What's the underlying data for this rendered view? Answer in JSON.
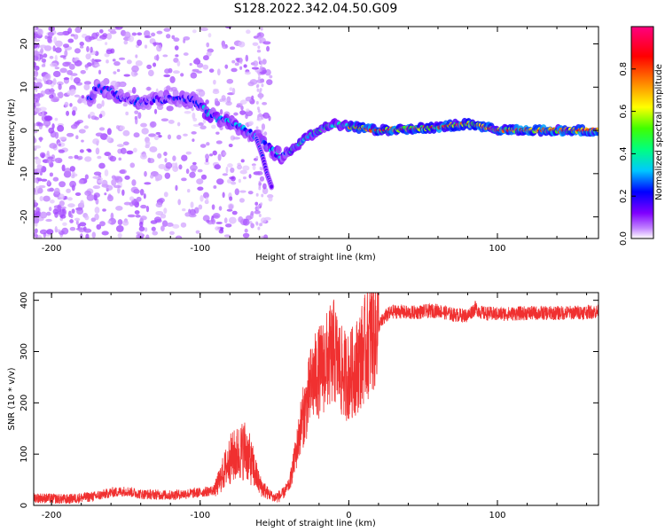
{
  "figure": {
    "title": "S128.2022.342.04.50.G09"
  },
  "chart_data": [
    {
      "type": "heatmap",
      "xlabel": "Height of straight line (km)",
      "ylabel": "Frequency (Hz)",
      "xlim": [
        -212,
        168
      ],
      "ylim": [
        -25,
        24
      ],
      "x_ticks": [
        -200,
        -100,
        0,
        100
      ],
      "y_ticks": [
        -20,
        -10,
        0,
        10,
        20
      ],
      "grid": false,
      "description_track": [
        {
          "x": -175,
          "y": 7
        },
        {
          "x": -170,
          "y": 10
        },
        {
          "x": -160,
          "y": 9
        },
        {
          "x": -150,
          "y": 7
        },
        {
          "x": -140,
          "y": 6.5
        },
        {
          "x": -130,
          "y": 7
        },
        {
          "x": -120,
          "y": 7.5
        },
        {
          "x": -105,
          "y": 7
        },
        {
          "x": -98,
          "y": 5
        },
        {
          "x": -90,
          "y": 3
        },
        {
          "x": -80,
          "y": 2
        },
        {
          "x": -70,
          "y": 0
        },
        {
          "x": -60,
          "y": -2
        },
        {
          "x": -50,
          "y": -5
        },
        {
          "x": -45,
          "y": -6
        },
        {
          "x": -40,
          "y": -5
        },
        {
          "x": -30,
          "y": -2
        },
        {
          "x": -20,
          "y": 0
        },
        {
          "x": -10,
          "y": 1.5
        },
        {
          "x": 0,
          "y": 1
        },
        {
          "x": 20,
          "y": 0
        },
        {
          "x": 50,
          "y": 0.5
        },
        {
          "x": 80,
          "y": 1.5
        },
        {
          "x": 90,
          "y": 1
        },
        {
          "x": 100,
          "y": 0
        },
        {
          "x": 130,
          "y": 0
        },
        {
          "x": 168,
          "y": 0
        }
      ],
      "branch_track": [
        {
          "x": -62,
          "y": -2
        },
        {
          "x": -58,
          "y": -6
        },
        {
          "x": -55,
          "y": -10
        },
        {
          "x": -52,
          "y": -13
        }
      ],
      "colorbar": {
        "label": "Normalized spectral amplitude",
        "range": [
          0,
          1
        ],
        "ticks": [
          0.0,
          0.2,
          0.4,
          0.6,
          0.8
        ],
        "colors": [
          "#ffffff",
          "#c080ff",
          "#7f00ff",
          "#0000ff",
          "#00c8ff",
          "#00ff80",
          "#40ff00",
          "#ffff00",
          "#ff8000",
          "#ff0000",
          "#ff0080"
        ]
      }
    },
    {
      "type": "line",
      "xlabel": "Height of straight line (km)",
      "ylabel": "SNR (10 * v/v)",
      "xlim": [
        -212,
        168
      ],
      "ylim": [
        0,
        415
      ],
      "x_ticks": [
        -200,
        -100,
        0,
        100
      ],
      "y_ticks": [
        0,
        100,
        200,
        300,
        400
      ],
      "grid": false,
      "series": [
        {
          "color": "#f03030",
          "x": [
            -212,
            -190,
            -170,
            -160,
            -150,
            -140,
            -120,
            -100,
            -90,
            -85,
            -80,
            -75,
            -70,
            -65,
            -60,
            -55,
            -50,
            -45,
            -40,
            -35,
            -32,
            -28,
            -25,
            -20,
            -15,
            -10,
            -5,
            0,
            5,
            10,
            15,
            20,
            25,
            30,
            35,
            40,
            50,
            60,
            70,
            80,
            85,
            90,
            100,
            120,
            140,
            168
          ],
          "y": [
            15,
            12,
            18,
            25,
            28,
            22,
            20,
            25,
            30,
            60,
            90,
            100,
            110,
            80,
            40,
            25,
            15,
            20,
            40,
            110,
            160,
            200,
            240,
            260,
            280,
            300,
            260,
            250,
            270,
            300,
            330,
            350,
            370,
            378,
            378,
            375,
            378,
            380,
            372,
            370,
            385,
            375,
            373,
            375,
            375,
            378
          ]
        }
      ]
    }
  ]
}
